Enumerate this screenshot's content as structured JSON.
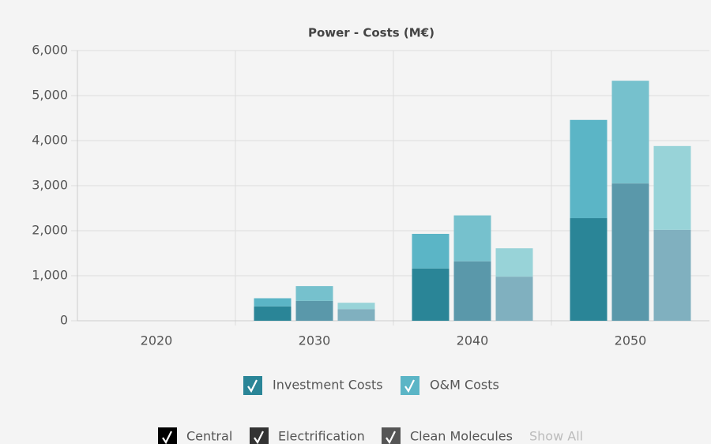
{
  "chart_data": {
    "type": "grouped_stacked_bar",
    "title": "Power - Costs (M€)",
    "categories": [
      "2020",
      "2030",
      "2040",
      "2050"
    ],
    "stacks": [
      "Investment Costs",
      "O&M Costs"
    ],
    "stack_legend_colors": [
      "#2a8597",
      "#5bb5c6"
    ],
    "groups": [
      {
        "name": "Central",
        "legend_color": "#000000",
        "series": [
          {
            "color": "#2a8597",
            "values": [
              0,
              320,
              1160,
              2280
            ]
          },
          {
            "color": "#5bb5c6",
            "values": [
              0,
              180,
              770,
              2180
            ]
          }
        ]
      },
      {
        "name": "Electrification",
        "legend_color": "#333333",
        "series": [
          {
            "color": "#5a98aa",
            "values": [
              0,
              440,
              1320,
              3050
            ]
          },
          {
            "color": "#76c1cd",
            "values": [
              0,
              330,
              1020,
              2280
            ]
          }
        ]
      },
      {
        "name": "Clean Molecules",
        "legend_color": "#555555",
        "series": [
          {
            "color": "#80b0bf",
            "values": [
              0,
              260,
              980,
              2020
            ]
          },
          {
            "color": "#98d3d8",
            "values": [
              0,
              140,
              630,
              1860
            ]
          }
        ]
      }
    ],
    "show_all": "Show All",
    "ylim": [
      0,
      6000
    ],
    "yticks": [
      0,
      {
        "value": 1000,
        "label": "1,000"
      },
      {
        "value": 2000,
        "label": "2,000"
      },
      {
        "value": 3000,
        "label": "3,000"
      },
      {
        "value": 4000,
        "label": "4,000"
      },
      {
        "value": 5000,
        "label": "5,000"
      },
      {
        "value": 6000,
        "label": "6,000"
      }
    ],
    "grid": true
  }
}
